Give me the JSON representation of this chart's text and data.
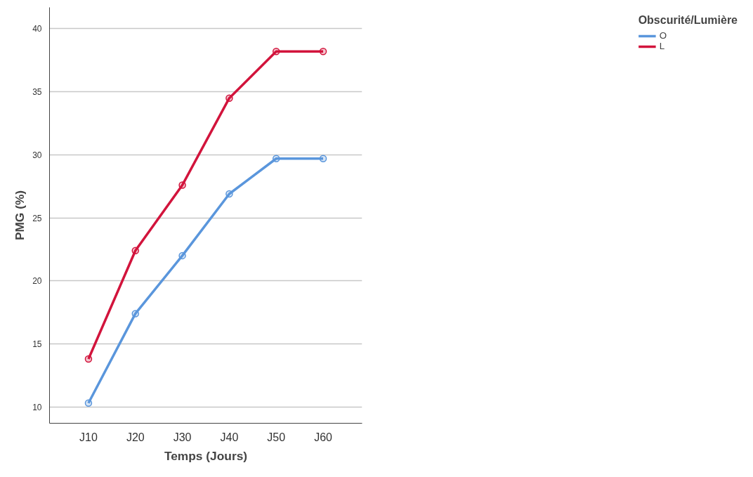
{
  "chart_data": {
    "type": "line",
    "xlabel": "Temps (Jours)",
    "ylabel": "PMG (%)",
    "legend_title": "Obscurité/Lumière",
    "categories": [
      "J10",
      "J20",
      "J30",
      "J40",
      "J50",
      "J60"
    ],
    "series": [
      {
        "name": "O",
        "color": "#5a96dc",
        "values": [
          10.3,
          17.4,
          22.0,
          26.9,
          29.7,
          29.7
        ]
      },
      {
        "name": "L",
        "color": "#d2143c",
        "values": [
          13.8,
          22.4,
          27.6,
          34.5,
          38.2,
          38.2
        ]
      }
    ],
    "ylim": [
      8.7,
      41.7
    ],
    "yticks": [
      10,
      15,
      20,
      25,
      30,
      35,
      40
    ],
    "grid": "y",
    "legend": "top right",
    "marker": "circle",
    "line_style": "solid"
  }
}
